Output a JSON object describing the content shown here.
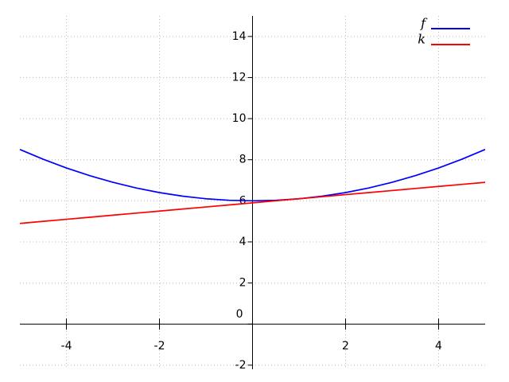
{
  "chart_data": {
    "type": "line",
    "x": [
      -5,
      -4.5,
      -4,
      -3.5,
      -3,
      -2.5,
      -2,
      -1.5,
      -1,
      -0.5,
      0,
      0.5,
      1,
      1.5,
      2,
      2.5,
      3,
      3.5,
      4,
      4.5,
      5
    ],
    "series": [
      {
        "name": "f",
        "color": "#0000ff",
        "values": [
          8.5,
          8.025,
          7.6,
          7.225,
          6.9,
          6.625,
          6.4,
          6.225,
          6.1,
          6.025,
          6,
          6.025,
          6.1,
          6.225,
          6.4,
          6.625,
          6.9,
          7.225,
          7.6,
          8.025,
          8.5
        ]
      },
      {
        "name": "k",
        "color": "#ff0000",
        "values": [
          4.9,
          5.0,
          5.1,
          5.2,
          5.3,
          5.4,
          5.5,
          5.6,
          5.7,
          5.8,
          5.9,
          6.0,
          6.1,
          6.2,
          6.3,
          6.4,
          6.5,
          6.6,
          6.7,
          6.8,
          6.9
        ]
      }
    ],
    "xlim": [
      -5,
      5
    ],
    "ylim": [
      -2.2,
      15
    ],
    "xticks": [
      -4,
      -2,
      2,
      4
    ],
    "yticks": [
      -2,
      0,
      2,
      4,
      6,
      8,
      10,
      12,
      14
    ],
    "grid": true,
    "legend": "upper right"
  }
}
